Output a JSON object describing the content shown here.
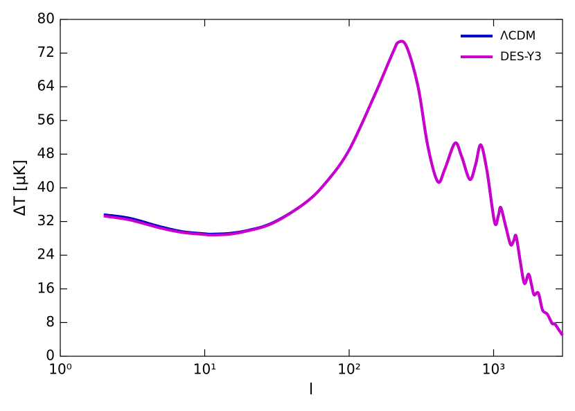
{
  "chart_data": {
    "type": "line",
    "xscale": "log",
    "xlabel": "l",
    "ylabel": "ΔT [μK]",
    "x": [
      2,
      3,
      5,
      7,
      10,
      11,
      15,
      20,
      30,
      50,
      70,
      100,
      150,
      200,
      220,
      250,
      300,
      350,
      410,
      460,
      540,
      600,
      684,
      750,
      815,
      900,
      1016,
      1080,
      1122,
      1220,
      1312,
      1380,
      1432,
      1530,
      1633,
      1746,
      1830,
      1905,
      2040,
      2180,
      2353,
      2540,
      2650,
      2800,
      3000
    ],
    "series": [
      {
        "name": "ΛCDM",
        "color": "#0000cc",
        "values": [
          33.6,
          32.8,
          30.7,
          29.6,
          29.1,
          29.0,
          29.2,
          29.9,
          31.8,
          36.5,
          41.5,
          49,
          62,
          72,
          74.6,
          73.5,
          64,
          50,
          41.5,
          44.5,
          50.6,
          47.5,
          42,
          45.5,
          50.2,
          44,
          31.8,
          33.5,
          35.3,
          30.5,
          26.5,
          27.5,
          28.5,
          22.5,
          17.3,
          19.5,
          17,
          14.6,
          15,
          11,
          10,
          7.8,
          7.7,
          6.5,
          5
        ]
      },
      {
        "name": "DES-Y3",
        "color": "#cc00cc",
        "values": [
          33.3,
          32.4,
          30.4,
          29.4,
          28.9,
          28.8,
          29.0,
          29.8,
          31.7,
          36.5,
          41.5,
          49,
          62,
          72,
          74.6,
          73.5,
          64,
          50,
          41.5,
          44.5,
          50.6,
          47.5,
          42,
          45.5,
          50.2,
          44,
          31.8,
          33.5,
          35.3,
          30.5,
          26.5,
          27.5,
          28.5,
          22.5,
          17.3,
          19.5,
          17,
          14.6,
          15,
          11,
          10,
          7.8,
          7.7,
          6.5,
          5
        ]
      }
    ],
    "xlim": [
      1,
      3000
    ],
    "xticks": [
      {
        "value": 1,
        "label": "10⁰"
      },
      {
        "value": 10,
        "label": "10¹"
      },
      {
        "value": 100,
        "label": "10²"
      },
      {
        "value": 1000,
        "label": "10³"
      }
    ],
    "ylim": [
      0,
      80
    ],
    "yticks": [
      0,
      8,
      16,
      24,
      32,
      40,
      48,
      56,
      64,
      72,
      80
    ],
    "legend": "upper right"
  }
}
